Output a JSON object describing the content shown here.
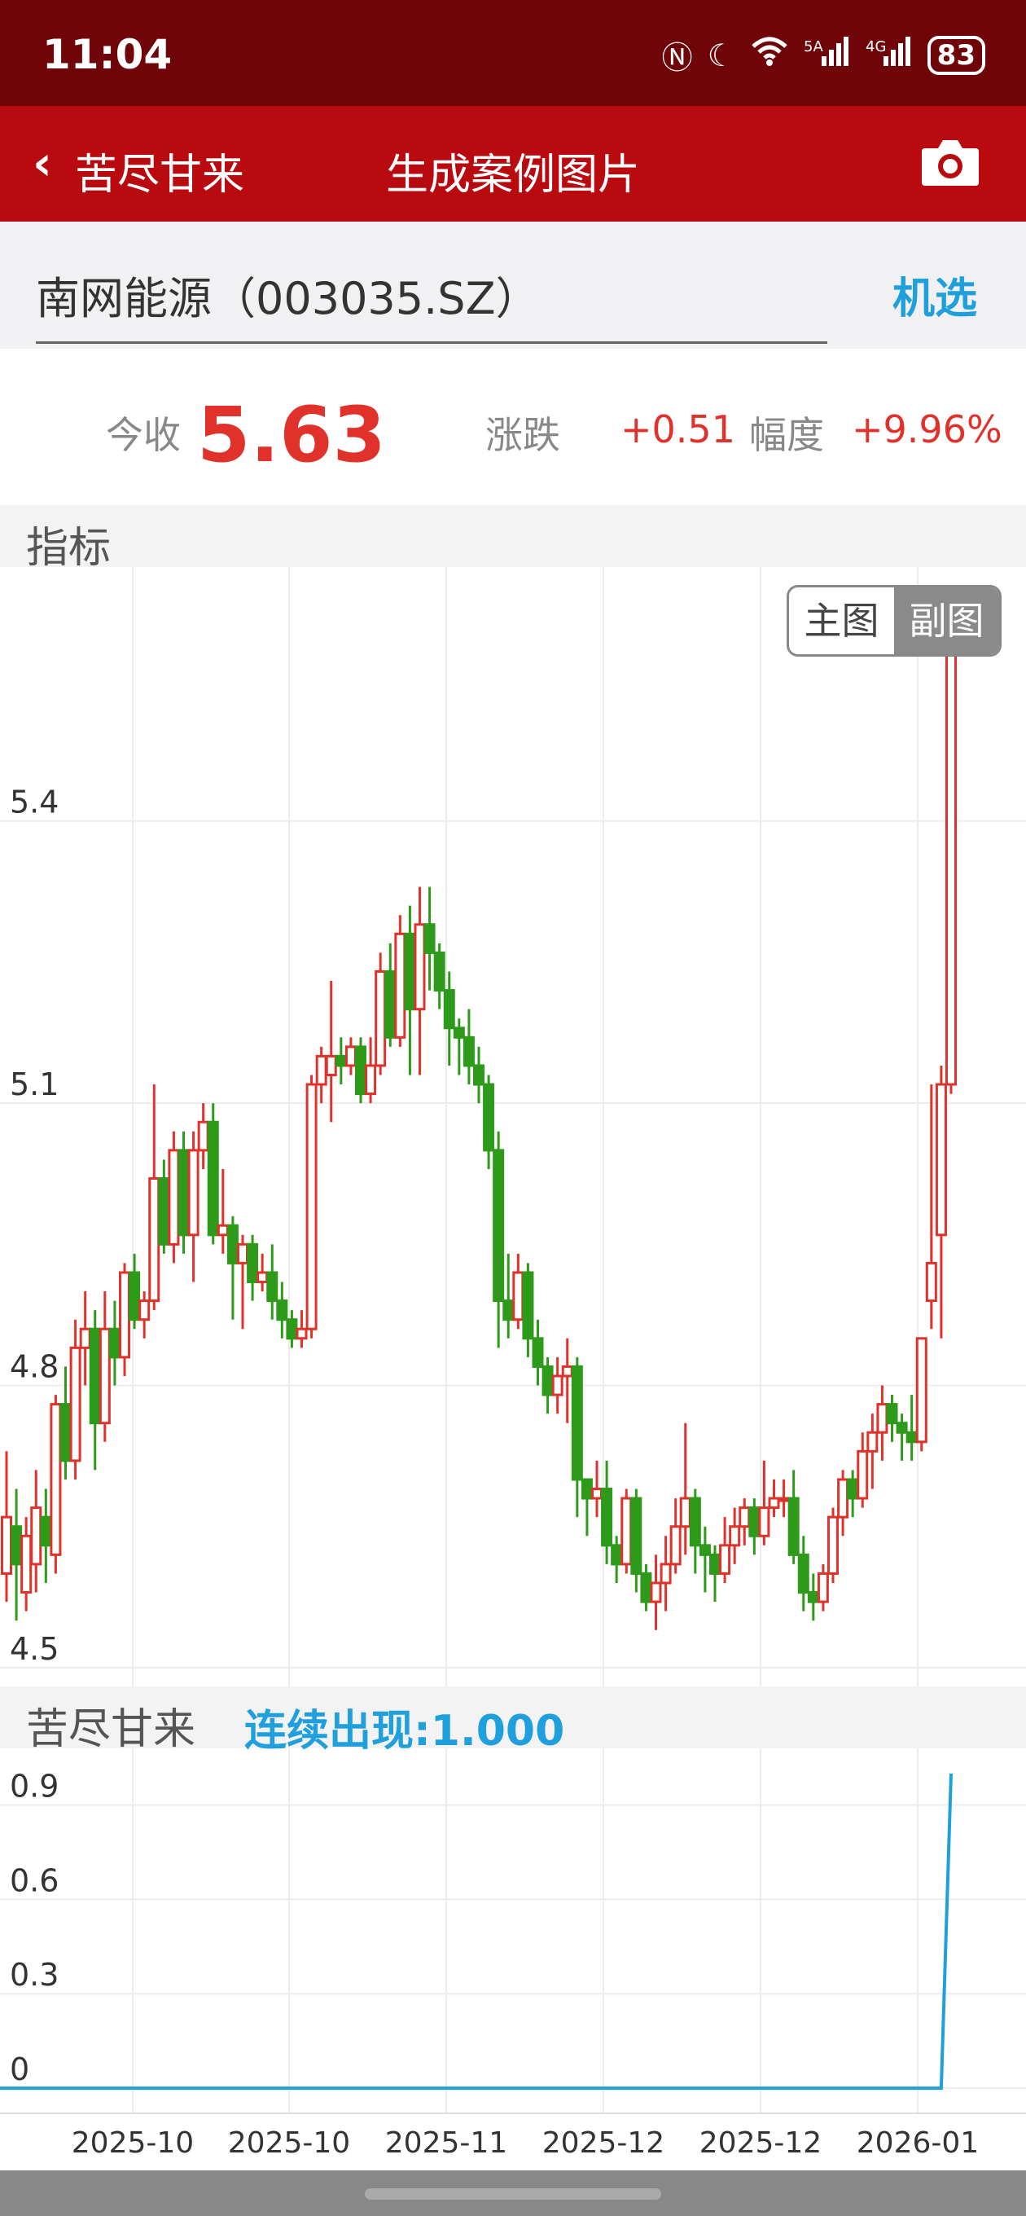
{
  "status_bar": {
    "time": "11:04",
    "battery": "83"
  },
  "header": {
    "back_label": "苦尽甘来",
    "title": "生成案例图片"
  },
  "search": {
    "stock": "南网能源（003035.SZ）",
    "pick_label": "机选"
  },
  "quote": {
    "close_label": "今收",
    "close_value": "5.63",
    "change_label": "涨跌",
    "change_value": "+0.51",
    "amplitude_label": "幅度",
    "amplitude_value": "+9.96%"
  },
  "main_section": {
    "label": "指标"
  },
  "toggle": {
    "main": "主图",
    "sub": "副图"
  },
  "sub_section": {
    "label": "苦尽甘来",
    "signal": "连续出现:1.000"
  },
  "colors": {
    "up": "#e0312a",
    "down": "#2d9a1a",
    "signal_line": "#1f9fdc"
  },
  "chart_data": [
    {
      "type": "candlestick",
      "y_ticks": [
        "5.4",
        "5.1",
        "4.8",
        "4.5"
      ],
      "ylim": [
        4.48,
        5.67
      ],
      "grid": true,
      "candles": [
        [
          4.6,
          4.66,
          4.57,
          4.73
        ],
        [
          4.65,
          4.61,
          4.55,
          4.69
        ],
        [
          4.58,
          4.64,
          4.56,
          4.66
        ],
        [
          4.61,
          4.67,
          4.58,
          4.71
        ],
        [
          4.66,
          4.63,
          4.59,
          4.69
        ],
        [
          4.62,
          4.78,
          4.6,
          4.79
        ],
        [
          4.78,
          4.72,
          4.7,
          4.82
        ],
        [
          4.72,
          4.84,
          4.7,
          4.87
        ],
        [
          4.84,
          4.86,
          4.8,
          4.9
        ],
        [
          4.86,
          4.76,
          4.71,
          4.88
        ],
        [
          4.76,
          4.86,
          4.74,
          4.9
        ],
        [
          4.86,
          4.83,
          4.8,
          4.89
        ],
        [
          4.83,
          4.92,
          4.81,
          4.93
        ],
        [
          4.92,
          4.87,
          4.86,
          4.94
        ],
        [
          4.87,
          4.89,
          4.85,
          4.9
        ],
        [
          4.89,
          5.02,
          4.88,
          5.12
        ],
        [
          5.02,
          4.95,
          4.94,
          5.04
        ],
        [
          4.95,
          5.05,
          4.93,
          5.07
        ],
        [
          5.05,
          4.96,
          4.94,
          5.07
        ],
        [
          4.96,
          5.05,
          4.91,
          5.07
        ],
        [
          5.05,
          5.08,
          5.03,
          5.1
        ],
        [
          5.08,
          4.96,
          4.95,
          5.1
        ],
        [
          4.96,
          4.97,
          4.94,
          5.03
        ],
        [
          4.97,
          4.93,
          4.87,
          4.98
        ],
        [
          4.93,
          4.95,
          4.86,
          4.96
        ],
        [
          4.95,
          4.91,
          4.89,
          4.96
        ],
        [
          4.91,
          4.92,
          4.9,
          4.94
        ],
        [
          4.92,
          4.89,
          4.87,
          4.95
        ],
        [
          4.89,
          4.87,
          4.85,
          4.91
        ],
        [
          4.87,
          4.85,
          4.84,
          4.88
        ],
        [
          4.85,
          4.86,
          4.84,
          4.88
        ],
        [
          4.86,
          5.12,
          4.85,
          5.13
        ],
        [
          5.12,
          5.15,
          5.1,
          5.16
        ],
        [
          5.13,
          5.15,
          5.08,
          5.23
        ],
        [
          5.15,
          5.14,
          5.12,
          5.17
        ],
        [
          5.14,
          5.16,
          5.13,
          5.17
        ],
        [
          5.16,
          5.11,
          5.1,
          5.17
        ],
        [
          5.11,
          5.14,
          5.1,
          5.17
        ],
        [
          5.14,
          5.24,
          5.13,
          5.26
        ],
        [
          5.24,
          5.17,
          5.16,
          5.27
        ],
        [
          5.17,
          5.28,
          5.16,
          5.3
        ],
        [
          5.28,
          5.2,
          5.13,
          5.31
        ],
        [
          5.2,
          5.29,
          5.13,
          5.33
        ],
        [
          5.29,
          5.26,
          5.22,
          5.33
        ],
        [
          5.26,
          5.22,
          5.2,
          5.27
        ],
        [
          5.22,
          5.18,
          5.14,
          5.24
        ],
        [
          5.18,
          5.17,
          5.13,
          5.19
        ],
        [
          5.17,
          5.14,
          5.12,
          5.2
        ],
        [
          5.14,
          5.12,
          5.1,
          5.16
        ],
        [
          5.12,
          5.05,
          5.03,
          5.13
        ],
        [
          5.05,
          4.89,
          4.84,
          5.07
        ],
        [
          4.89,
          4.87,
          4.85,
          4.94
        ],
        [
          4.87,
          4.92,
          4.86,
          4.94
        ],
        [
          4.92,
          4.85,
          4.83,
          4.93
        ],
        [
          4.85,
          4.82,
          4.8,
          4.87
        ],
        [
          4.82,
          4.79,
          4.77,
          4.83
        ],
        [
          4.79,
          4.81,
          4.77,
          4.83
        ],
        [
          4.81,
          4.82,
          4.76,
          4.85
        ],
        [
          4.82,
          4.7,
          4.66,
          4.83
        ],
        [
          4.7,
          4.68,
          4.64,
          4.7
        ],
        [
          4.68,
          4.69,
          4.66,
          4.72
        ],
        [
          4.69,
          4.63,
          4.61,
          4.72
        ],
        [
          4.63,
          4.61,
          4.59,
          4.64
        ],
        [
          4.61,
          4.68,
          4.6,
          4.69
        ],
        [
          4.68,
          4.6,
          4.58,
          4.69
        ],
        [
          4.6,
          4.57,
          4.56,
          4.61
        ],
        [
          4.57,
          4.59,
          4.54,
          4.62
        ],
        [
          4.59,
          4.61,
          4.56,
          4.64
        ],
        [
          4.61,
          4.65,
          4.6,
          4.68
        ],
        [
          4.65,
          4.68,
          4.62,
          4.76
        ],
        [
          4.68,
          4.63,
          4.6,
          4.69
        ],
        [
          4.63,
          4.62,
          4.58,
          4.65
        ],
        [
          4.62,
          4.6,
          4.57,
          4.63
        ],
        [
          4.6,
          4.63,
          4.59,
          4.66
        ],
        [
          4.63,
          4.65,
          4.61,
          4.67
        ],
        [
          4.65,
          4.67,
          4.63,
          4.68
        ],
        [
          4.67,
          4.64,
          4.62,
          4.68
        ],
        [
          4.64,
          4.67,
          4.63,
          4.72
        ],
        [
          4.67,
          4.68,
          4.66,
          4.7
        ],
        [
          4.68,
          4.68,
          4.66,
          4.7
        ],
        [
          4.68,
          4.62,
          4.61,
          4.71
        ],
        [
          4.62,
          4.58,
          4.56,
          4.64
        ],
        [
          4.58,
          4.57,
          4.55,
          4.6
        ],
        [
          4.57,
          4.6,
          4.56,
          4.61
        ],
        [
          4.6,
          4.66,
          4.59,
          4.67
        ],
        [
          4.66,
          4.7,
          4.64,
          4.71
        ],
        [
          4.7,
          4.68,
          4.66,
          4.71
        ],
        [
          4.68,
          4.73,
          4.67,
          4.75
        ],
        [
          4.73,
          4.75,
          4.69,
          4.77
        ],
        [
          4.75,
          4.78,
          4.72,
          4.8
        ],
        [
          4.78,
          4.76,
          4.74,
          4.79
        ],
        [
          4.76,
          4.75,
          4.72,
          4.77
        ],
        [
          4.75,
          4.74,
          4.72,
          4.79
        ],
        [
          4.74,
          4.85,
          4.73,
          4.85
        ],
        [
          4.89,
          4.93,
          4.86,
          5.12
        ],
        [
          4.96,
          5.12,
          4.85,
          5.14
        ],
        [
          5.12,
          5.63,
          5.11,
          5.63
        ]
      ]
    },
    {
      "type": "line",
      "y_ticks": [
        "0.9",
        "0.6",
        "0.3",
        "0"
      ],
      "ylim": [
        -0.08,
        1.08
      ],
      "x_ticks": [
        "2025-10",
        "2025-10",
        "2025-11",
        "2025-12",
        "2025-12",
        "2026-01"
      ],
      "grid": true,
      "values_note_free": true,
      "series": [
        {
          "values": [
            0,
            0,
            0,
            0,
            0,
            0,
            0,
            0,
            0,
            0,
            0,
            0,
            0,
            0,
            0,
            0,
            0,
            0,
            0,
            0,
            0,
            0,
            0,
            0,
            0,
            0,
            0,
            0,
            0,
            0,
            0,
            0,
            0,
            0,
            0,
            0,
            0,
            0,
            0,
            0,
            0,
            0,
            0,
            0,
            0,
            0,
            0,
            0,
            0,
            0,
            0,
            0,
            0,
            0,
            0,
            0,
            0,
            0,
            0,
            0,
            0,
            0,
            0,
            0,
            0,
            0,
            0,
            0,
            0,
            0,
            0,
            0,
            0,
            0,
            0,
            0,
            0,
            0,
            0,
            0,
            0,
            0,
            0,
            0,
            0,
            0,
            0,
            0,
            0,
            0,
            0,
            0,
            0,
            0,
            0,
            0,
            1
          ]
        }
      ]
    }
  ]
}
